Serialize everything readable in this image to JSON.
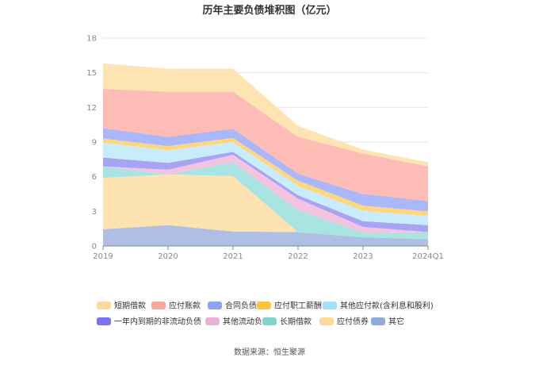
{
  "chart_data": {
    "type": "area",
    "stacked": true,
    "title": "历年主要负债堆积图（亿元）",
    "xlabel": "",
    "ylabel": "",
    "categories": [
      "2019",
      "2020",
      "2021",
      "2022",
      "2023",
      "2024Q1"
    ],
    "yticks": [
      "0",
      "3",
      "6",
      "9",
      "12",
      "15",
      "18"
    ],
    "ylim": [
      0,
      18
    ],
    "grid": true,
    "legend_position": "bottom",
    "series": [
      {
        "name": "其它",
        "color": "#aebfe3",
        "values": [
          1.45,
          1.8,
          1.25,
          1.2,
          0.75,
          0.6
        ]
      },
      {
        "name": "应付债券",
        "color": "#fde2b2",
        "values": [
          4.45,
          4.4,
          4.8,
          0.0,
          0.0,
          0.0
        ]
      },
      {
        "name": "长期借款",
        "color": "#a9e4e2",
        "values": [
          1.0,
          0.0,
          1.2,
          1.9,
          0.4,
          0.6
        ]
      },
      {
        "name": "其他流动负债",
        "color": "#f2c4e0",
        "values": [
          0.0,
          0.4,
          0.65,
          1.0,
          0.5,
          0.0
        ]
      },
      {
        "name": "一年内到期的非流动负债",
        "color": "#a8a3f2",
        "values": [
          0.75,
          0.6,
          0.25,
          0.3,
          0.5,
          0.6
        ]
      },
      {
        "name": "其他应付款(含利息和股利)",
        "color": "#c8ecfb",
        "values": [
          1.3,
          1.1,
          0.85,
          0.8,
          0.9,
          0.8
        ]
      },
      {
        "name": "应付职工薪酬",
        "color": "#fdd77e",
        "values": [
          0.35,
          0.35,
          0.35,
          0.45,
          0.45,
          0.4
        ]
      },
      {
        "name": "合同负债",
        "color": "#aab7fb",
        "values": [
          0.9,
          0.8,
          0.8,
          0.6,
          1.0,
          0.9
        ]
      },
      {
        "name": "应付账款",
        "color": "#febcb7",
        "values": [
          3.4,
          3.9,
          3.2,
          3.2,
          3.5,
          3.0
        ]
      },
      {
        "name": "短期借款",
        "color": "#fee4b3",
        "values": [
          2.2,
          2.0,
          2.0,
          0.95,
          0.35,
          0.35
        ]
      }
    ],
    "legend_order": [
      "短期借款",
      "应付账款",
      "合同负债",
      "应付职工薪酬",
      "其他应付款(含利息和股利)",
      "一年内到期的非流动负债",
      "其他流动负债",
      "长期借款",
      "应付债券",
      "其它"
    ],
    "legend_colors": {
      "短期借款": "#fdd9a0",
      "应付账款": "#fba59d",
      "合同负债": "#8fa3f6",
      "应付职工薪酬": "#fdc43c",
      "其他应付款(含利息和股利)": "#a9dffb",
      "一年内到期的非流动负债": "#7a72ee",
      "其他流动负债": "#eab3d5",
      "长期借款": "#80d3cf",
      "应付债券": "#fdd9a0",
      "其它": "#93aadb"
    }
  },
  "source": "数据来源：恒生聚源"
}
